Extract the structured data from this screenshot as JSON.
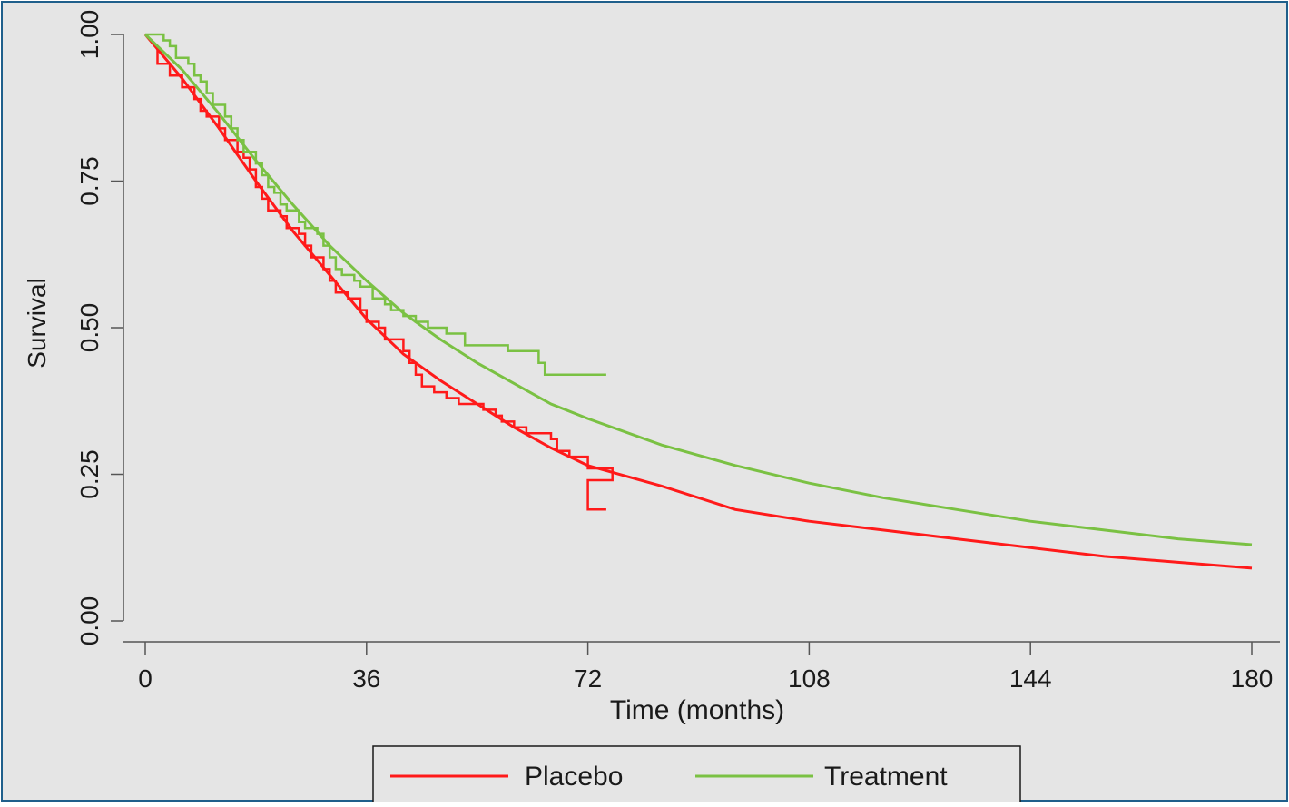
{
  "colors": {
    "background": "#e5e5e5",
    "frame": "#1f5f8b",
    "axis": "#555555",
    "placebo": "#ff1a1a",
    "treatment": "#7ac143"
  },
  "chart_data": {
    "type": "line",
    "xlabel": "Time (months)",
    "ylabel": "Survival",
    "xlim": [
      0,
      180
    ],
    "ylim": [
      0,
      1
    ],
    "xticks": [
      {
        "value": 0,
        "label": "0"
      },
      {
        "value": 36,
        "label": "36"
      },
      {
        "value": 72,
        "label": "72"
      },
      {
        "value": 108,
        "label": "108"
      },
      {
        "value": 144,
        "label": "144"
      },
      {
        "value": 180,
        "label": "180"
      }
    ],
    "yticks": [
      {
        "value": 0,
        "label": "0.00"
      },
      {
        "value": 0.25,
        "label": "0.25"
      },
      {
        "value": 0.5,
        "label": "0.50"
      },
      {
        "value": 0.75,
        "label": "0.75"
      },
      {
        "value": 1,
        "label": "1.00"
      }
    ],
    "grid": false,
    "legend_position": "bottom",
    "series": [
      {
        "name": "Placebo",
        "color": "#ff1a1a",
        "kind": "step",
        "points": [
          [
            0,
            1.0
          ],
          [
            2,
            0.98
          ],
          [
            2,
            0.95
          ],
          [
            4,
            0.95
          ],
          [
            4,
            0.93
          ],
          [
            6,
            0.93
          ],
          [
            6,
            0.91
          ],
          [
            8,
            0.91
          ],
          [
            8,
            0.89
          ],
          [
            9,
            0.89
          ],
          [
            9,
            0.87
          ],
          [
            10,
            0.87
          ],
          [
            10,
            0.86
          ],
          [
            12,
            0.86
          ],
          [
            12,
            0.84
          ],
          [
            13,
            0.84
          ],
          [
            13,
            0.82
          ],
          [
            15,
            0.82
          ],
          [
            15,
            0.8
          ],
          [
            16,
            0.8
          ],
          [
            16,
            0.79
          ],
          [
            17,
            0.79
          ],
          [
            17,
            0.77
          ],
          [
            18,
            0.77
          ],
          [
            18,
            0.74
          ],
          [
            19,
            0.74
          ],
          [
            19,
            0.72
          ],
          [
            20,
            0.72
          ],
          [
            20,
            0.7
          ],
          [
            22,
            0.7
          ],
          [
            22,
            0.69
          ],
          [
            23,
            0.69
          ],
          [
            23,
            0.67
          ],
          [
            25,
            0.67
          ],
          [
            25,
            0.66
          ],
          [
            26,
            0.66
          ],
          [
            26,
            0.64
          ],
          [
            27,
            0.64
          ],
          [
            27,
            0.62
          ],
          [
            29,
            0.62
          ],
          [
            29,
            0.6
          ],
          [
            30,
            0.6
          ],
          [
            30,
            0.58
          ],
          [
            31,
            0.58
          ],
          [
            31,
            0.56
          ],
          [
            33,
            0.56
          ],
          [
            33,
            0.55
          ],
          [
            35,
            0.55
          ],
          [
            35,
            0.53
          ],
          [
            36,
            0.53
          ],
          [
            36,
            0.51
          ],
          [
            38,
            0.51
          ],
          [
            38,
            0.5
          ],
          [
            39,
            0.5
          ],
          [
            39,
            0.48
          ],
          [
            42,
            0.48
          ],
          [
            42,
            0.46
          ],
          [
            43,
            0.46
          ],
          [
            43,
            0.44
          ],
          [
            44,
            0.44
          ],
          [
            44,
            0.42
          ],
          [
            45,
            0.42
          ],
          [
            45,
            0.4
          ],
          [
            47,
            0.4
          ],
          [
            47,
            0.39
          ],
          [
            49,
            0.39
          ],
          [
            49,
            0.38
          ],
          [
            51,
            0.38
          ],
          [
            51,
            0.37
          ],
          [
            55,
            0.37
          ],
          [
            55,
            0.36
          ],
          [
            57,
            0.36
          ],
          [
            57,
            0.35
          ],
          [
            58,
            0.35
          ],
          [
            58,
            0.34
          ],
          [
            60,
            0.34
          ],
          [
            60,
            0.33
          ],
          [
            62,
            0.33
          ],
          [
            62,
            0.32
          ],
          [
            66,
            0.32
          ],
          [
            66,
            0.31
          ],
          [
            67,
            0.31
          ],
          [
            67,
            0.29
          ],
          [
            69,
            0.29
          ],
          [
            69,
            0.28
          ],
          [
            72,
            0.28
          ],
          [
            72,
            0.26
          ],
          [
            76,
            0.26
          ],
          [
            76,
            0.24
          ],
          [
            72,
            0.24
          ],
          [
            72,
            0.19
          ],
          [
            75,
            0.19
          ]
        ]
      },
      {
        "name": "Treatment",
        "color": "#7ac143",
        "kind": "step",
        "points": [
          [
            0,
            1.0
          ],
          [
            3,
            1.0
          ],
          [
            3,
            0.99
          ],
          [
            4,
            0.99
          ],
          [
            4,
            0.98
          ],
          [
            5,
            0.98
          ],
          [
            5,
            0.96
          ],
          [
            7,
            0.96
          ],
          [
            7,
            0.95
          ],
          [
            8,
            0.95
          ],
          [
            8,
            0.93
          ],
          [
            9,
            0.93
          ],
          [
            9,
            0.92
          ],
          [
            10,
            0.92
          ],
          [
            10,
            0.9
          ],
          [
            11,
            0.9
          ],
          [
            11,
            0.88
          ],
          [
            13,
            0.88
          ],
          [
            13,
            0.86
          ],
          [
            14,
            0.86
          ],
          [
            14,
            0.84
          ],
          [
            15,
            0.84
          ],
          [
            15,
            0.82
          ],
          [
            16,
            0.82
          ],
          [
            16,
            0.8
          ],
          [
            18,
            0.8
          ],
          [
            18,
            0.78
          ],
          [
            19,
            0.78
          ],
          [
            19,
            0.76
          ],
          [
            20,
            0.76
          ],
          [
            20,
            0.74
          ],
          [
            21,
            0.74
          ],
          [
            21,
            0.73
          ],
          [
            22,
            0.73
          ],
          [
            22,
            0.71
          ],
          [
            23,
            0.71
          ],
          [
            23,
            0.7
          ],
          [
            25,
            0.7
          ],
          [
            25,
            0.68
          ],
          [
            26,
            0.68
          ],
          [
            26,
            0.67
          ],
          [
            28,
            0.67
          ],
          [
            28,
            0.66
          ],
          [
            29,
            0.66
          ],
          [
            29,
            0.64
          ],
          [
            30,
            0.64
          ],
          [
            30,
            0.62
          ],
          [
            31,
            0.62
          ],
          [
            31,
            0.6
          ],
          [
            32,
            0.6
          ],
          [
            32,
            0.59
          ],
          [
            34,
            0.59
          ],
          [
            34,
            0.58
          ],
          [
            35,
            0.58
          ],
          [
            35,
            0.57
          ],
          [
            37,
            0.57
          ],
          [
            37,
            0.55
          ],
          [
            39,
            0.55
          ],
          [
            39,
            0.54
          ],
          [
            40,
            0.54
          ],
          [
            40,
            0.53
          ],
          [
            42,
            0.53
          ],
          [
            42,
            0.52
          ],
          [
            44,
            0.52
          ],
          [
            44,
            0.51
          ],
          [
            46,
            0.51
          ],
          [
            46,
            0.5
          ],
          [
            49,
            0.5
          ],
          [
            49,
            0.49
          ],
          [
            52,
            0.49
          ],
          [
            52,
            0.47
          ],
          [
            59,
            0.47
          ],
          [
            59,
            0.46
          ],
          [
            64,
            0.46
          ],
          [
            64,
            0.44
          ],
          [
            65,
            0.44
          ],
          [
            65,
            0.42
          ],
          [
            75,
            0.42
          ]
        ]
      },
      {
        "name": "",
        "legend": false,
        "color": "#ff1a1a",
        "kind": "smooth",
        "points": [
          [
            0,
            1.0
          ],
          [
            6,
            0.925
          ],
          [
            12,
            0.84
          ],
          [
            18,
            0.75
          ],
          [
            24,
            0.665
          ],
          [
            30,
            0.59
          ],
          [
            36,
            0.515
          ],
          [
            42,
            0.455
          ],
          [
            48,
            0.41
          ],
          [
            54,
            0.37
          ],
          [
            60,
            0.33
          ],
          [
            66,
            0.295
          ],
          [
            72,
            0.265
          ],
          [
            84,
            0.23
          ],
          [
            96,
            0.19
          ],
          [
            108,
            0.17
          ],
          [
            120,
            0.155
          ],
          [
            132,
            0.14
          ],
          [
            144,
            0.125
          ],
          [
            156,
            0.11
          ],
          [
            168,
            0.1
          ],
          [
            180,
            0.09
          ]
        ]
      },
      {
        "name": "",
        "legend": false,
        "color": "#7ac143",
        "kind": "smooth",
        "points": [
          [
            0,
            1.0
          ],
          [
            6,
            0.94
          ],
          [
            12,
            0.865
          ],
          [
            18,
            0.785
          ],
          [
            24,
            0.71
          ],
          [
            30,
            0.64
          ],
          [
            36,
            0.58
          ],
          [
            42,
            0.525
          ],
          [
            48,
            0.48
          ],
          [
            54,
            0.44
          ],
          [
            60,
            0.405
          ],
          [
            66,
            0.37
          ],
          [
            72,
            0.345
          ],
          [
            84,
            0.3
          ],
          [
            96,
            0.265
          ],
          [
            108,
            0.235
          ],
          [
            120,
            0.21
          ],
          [
            132,
            0.19
          ],
          [
            144,
            0.17
          ],
          [
            156,
            0.155
          ],
          [
            168,
            0.14
          ],
          [
            180,
            0.13
          ]
        ]
      }
    ]
  },
  "legend": {
    "items": [
      {
        "label": "Placebo",
        "color": "#ff1a1a"
      },
      {
        "label": "Treatment",
        "color": "#7ac143"
      }
    ]
  }
}
